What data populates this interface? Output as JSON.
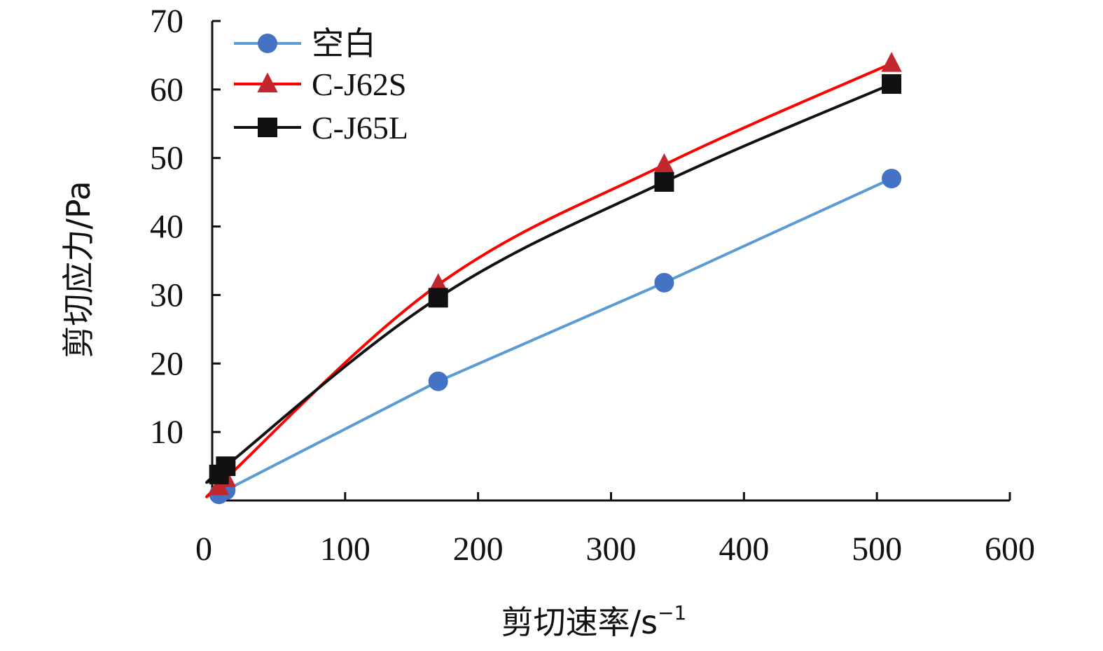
{
  "chart_data": {
    "type": "line",
    "title": "",
    "xlabel": "剪切速率/s",
    "xlabel_sup": "−1",
    "ylabel": "剪切应力/Pa",
    "xlim": [
      0,
      600
    ],
    "ylim": [
      0,
      70
    ],
    "x_ticks": [
      0,
      100,
      200,
      300,
      400,
      500,
      600
    ],
    "y_ticks": [
      10,
      20,
      30,
      40,
      50,
      60,
      70
    ],
    "grid": false,
    "legend_position": "top-left",
    "series": [
      {
        "name": "空白",
        "color": "#4472C4",
        "line_color": "#5B9BD5",
        "marker": "circle",
        "x": [
          5.1,
          10.2,
          170,
          340,
          511
        ],
        "y": [
          0.9,
          1.5,
          17.4,
          31.8,
          47.0
        ]
      },
      {
        "name": "C-J62S",
        "color": "#C0282E",
        "line_color": "#FF0000",
        "marker": "triangle",
        "x": [
          5.1,
          10.2,
          170,
          340,
          511
        ],
        "y": [
          2.0,
          3.2,
          31.5,
          49.0,
          63.8
        ]
      },
      {
        "name": "C-J65L",
        "color": "#111111",
        "line_color": "#111111",
        "marker": "square",
        "x": [
          5.1,
          10.2,
          170,
          340,
          511
        ],
        "y": [
          3.8,
          5.0,
          29.6,
          46.5,
          60.8
        ]
      }
    ]
  }
}
